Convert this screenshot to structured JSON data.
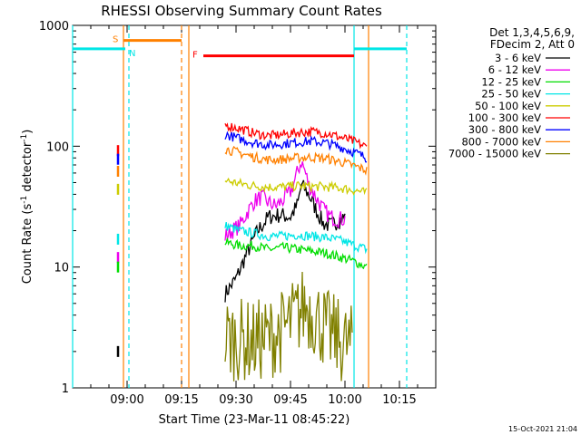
{
  "chart_data": {
    "type": "line",
    "title": "RHESSI Observing Summary Count Rates",
    "xlabel": "Start Time (23-Mar-11 08:45:22)",
    "ylabel_main": "Count Rate (s",
    "ylabel_sup1": "-1",
    "ylabel_mid": " detector",
    "ylabel_sup2": "-1",
    "ylabel_end": ")",
    "y_scale": "log",
    "ylim": [
      1,
      1000
    ],
    "xlim_minutes": [
      0,
      100
    ],
    "x_ticks": [
      {
        "min": 15,
        "label": "09:00"
      },
      {
        "min": 30,
        "label": "09:15"
      },
      {
        "min": 45,
        "label": "09:30"
      },
      {
        "min": 60,
        "label": "09:45"
      },
      {
        "min": 75,
        "label": "10:00"
      },
      {
        "min": 90,
        "label": "10:15"
      }
    ],
    "y_ticks": [
      {
        "value": 1,
        "label": "1"
      },
      {
        "value": 10,
        "label": "10"
      },
      {
        "value": 100,
        "label": "100"
      },
      {
        "value": 1000,
        "label": "1000"
      }
    ],
    "legend_header": [
      "Det 1,3,4,5,6,9,",
      "FDecim 2, Att 0"
    ],
    "legend_position": "right",
    "series": [
      {
        "name": "3 - 6 keV",
        "color": "#000000",
        "x": [
          42,
          45,
          48,
          51,
          54,
          57,
          60,
          62,
          63,
          65,
          67,
          69,
          71,
          73,
          75
        ],
        "y": [
          6,
          8,
          13,
          20,
          26,
          27,
          26,
          33,
          48,
          40,
          30,
          23,
          22,
          24,
          26
        ]
      },
      {
        "name": "6 - 12 keV",
        "color": "#ee00ee",
        "x": [
          42,
          44,
          46,
          48,
          50,
          52,
          54,
          56,
          58,
          60,
          61,
          62,
          63,
          64,
          65,
          67,
          69,
          71,
          73,
          75
        ],
        "y": [
          18,
          20,
          22,
          28,
          35,
          38,
          34,
          32,
          36,
          42,
          50,
          62,
          75,
          62,
          48,
          38,
          30,
          26,
          25,
          25
        ]
      },
      {
        "name": "12 - 25 keV",
        "color": "#00dd00",
        "x": [
          42,
          46,
          50,
          54,
          58,
          62,
          66,
          70,
          74,
          78,
          81
        ],
        "y": [
          16,
          15,
          15,
          14,
          14.5,
          14,
          13.5,
          13,
          12,
          11,
          10
        ]
      },
      {
        "name": "25 - 50 keV",
        "color": "#00e6e6",
        "x": [
          42,
          46,
          50,
          54,
          58,
          62,
          66,
          70,
          74,
          78,
          81
        ],
        "y": [
          22,
          20,
          19,
          18,
          18,
          18.5,
          18,
          17.5,
          16.5,
          15,
          14
        ]
      },
      {
        "name": "50 - 100 keV",
        "color": "#cccc00",
        "x": [
          42,
          46,
          50,
          54,
          58,
          62,
          66,
          70,
          74,
          78,
          81
        ],
        "y": [
          52,
          49,
          47,
          46,
          46,
          47,
          46.5,
          46,
          45,
          43,
          41
        ]
      },
      {
        "name": "100 - 300 keV",
        "color": "#ff0000",
        "x": [
          42,
          46,
          50,
          54,
          58,
          62,
          66,
          70,
          74,
          78,
          81
        ],
        "y": [
          150,
          140,
          128,
          122,
          125,
          130,
          132,
          128,
          118,
          108,
          98
        ]
      },
      {
        "name": "300 - 800 keV",
        "color": "#0000ff",
        "x": [
          42,
          46,
          50,
          54,
          58,
          62,
          66,
          70,
          74,
          78,
          81
        ],
        "y": [
          125,
          115,
          107,
          102,
          105,
          108,
          110,
          106,
          98,
          88,
          80
        ]
      },
      {
        "name": "800 - 7000 keV",
        "color": "#ff8000",
        "x": [
          42,
          46,
          50,
          54,
          58,
          62,
          66,
          70,
          74,
          78,
          81
        ],
        "y": [
          95,
          88,
          81,
          77,
          78,
          80,
          81,
          79,
          74,
          68,
          63
        ]
      },
      {
        "name": "7000 - 15000 keV",
        "color": "#808000",
        "x": [
          42,
          46,
          50,
          54,
          58,
          62,
          64,
          66,
          70,
          74,
          77
        ],
        "y": [
          2.6,
          2.5,
          2.4,
          2.6,
          3,
          4,
          4.8,
          4.2,
          3,
          2.4,
          2.2
        ]
      }
    ],
    "early_spike_min": 12.5,
    "early_spike_values": [
      {
        "color": "#ff0000",
        "y": 92
      },
      {
        "color": "#0000ff",
        "y": 78
      },
      {
        "color": "#ff8000",
        "y": 62
      },
      {
        "color": "#cccc00",
        "y": 44
      },
      {
        "color": "#00e6e6",
        "y": 17
      },
      {
        "color": "#ee00ee",
        "y": 12
      },
      {
        "color": "#00dd00",
        "y": 10
      },
      {
        "color": "#000000",
        "y": 2
      }
    ],
    "state_bars": [
      {
        "label": "S",
        "color": "#ff8000",
        "x0": 14,
        "x1": 30,
        "y": 750
      },
      {
        "label": "N",
        "color": "#00e6e6",
        "x0": 0,
        "x1": 14.5,
        "y": 640
      },
      {
        "label": "F",
        "color": "#ff0000",
        "x0": 36,
        "x1": 77.5,
        "y": 560
      }
    ],
    "state_bars_right": [
      {
        "color": "#00e6e6",
        "x0": 77.5,
        "x1": 92,
        "y": 640
      }
    ],
    "vertical_lines": [
      {
        "color": "#00e6e6",
        "min": 0,
        "dashed": false
      },
      {
        "color": "#00e6e6",
        "min": 15.5,
        "dashed": true
      },
      {
        "color": "#ff8000",
        "min": 14,
        "dashed": false
      },
      {
        "color": "#ff8000",
        "min": 30,
        "dashed": true
      },
      {
        "color": "#ff8000",
        "min": 32,
        "dashed": false
      },
      {
        "color": "#00e6e6",
        "min": 77.5,
        "dashed": false
      },
      {
        "color": "#00e6e6",
        "min": 92,
        "dashed": true
      },
      {
        "color": "#ff8000",
        "min": 81.5,
        "dashed": false
      }
    ],
    "timestamp": "15-Oct-2021 21:04"
  }
}
